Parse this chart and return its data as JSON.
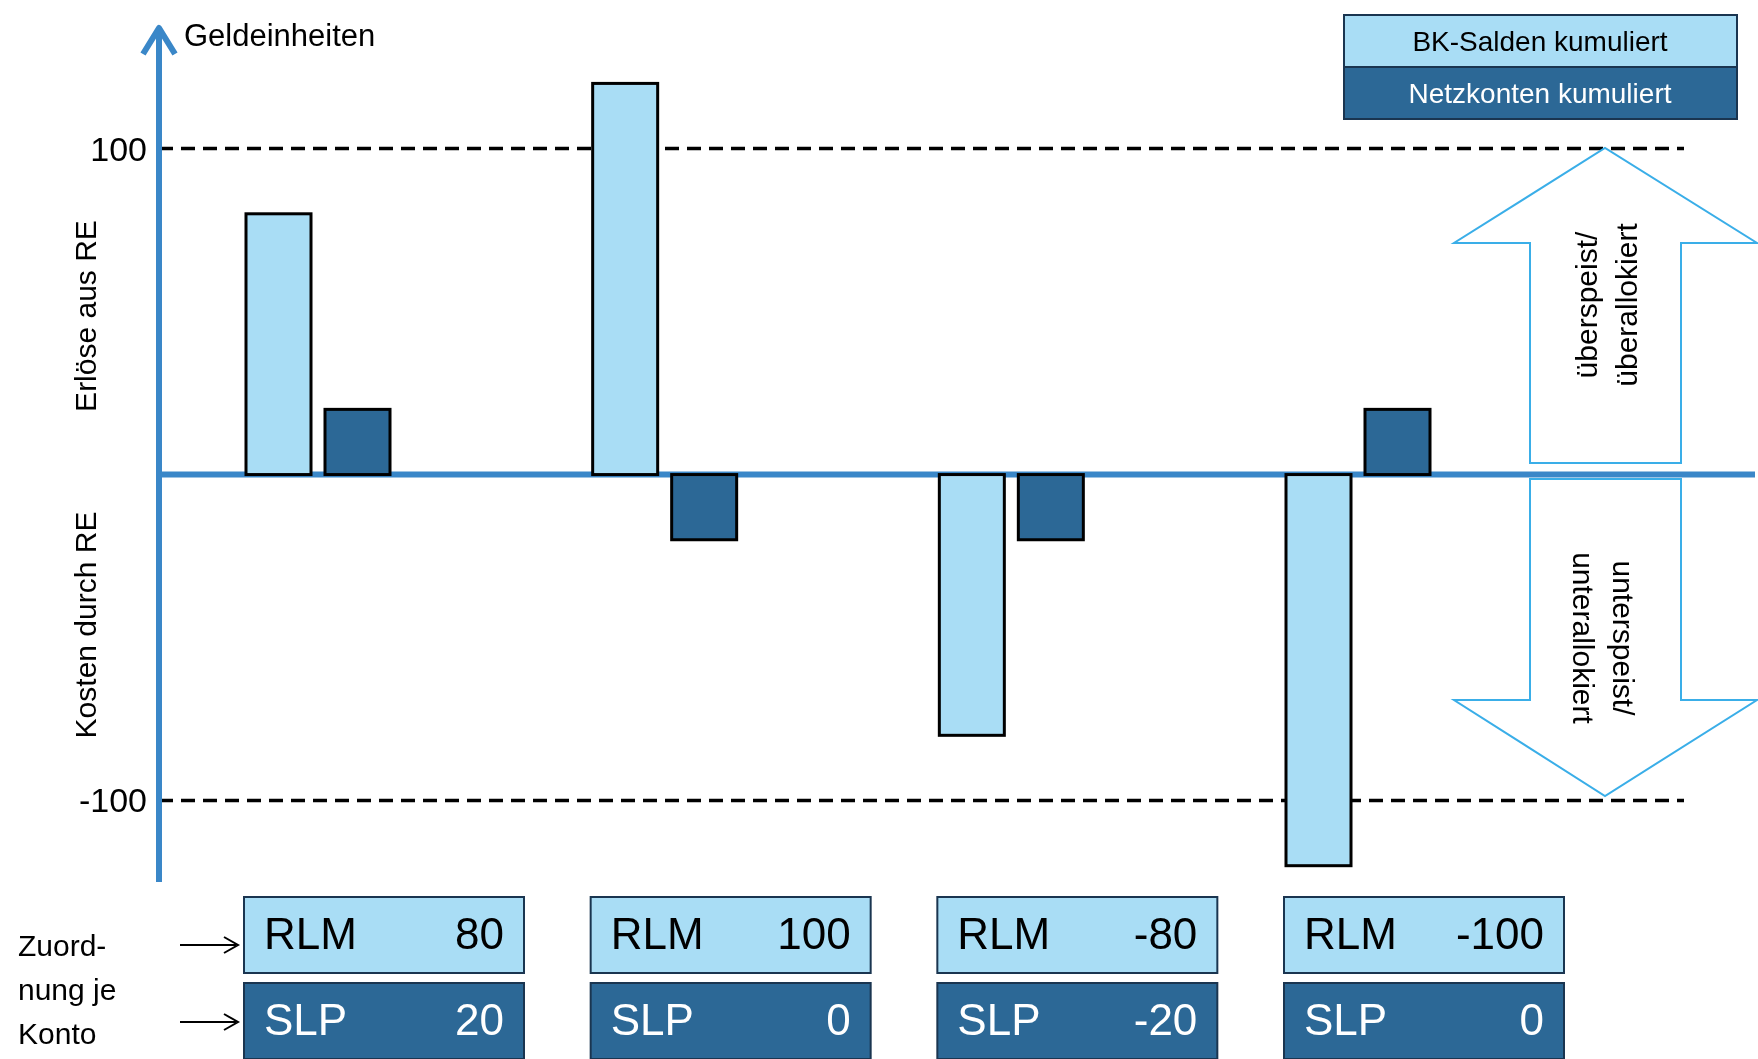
{
  "chart_data": {
    "type": "bar",
    "ylabel": "Geldeinheiten",
    "categories": [
      null,
      null,
      null,
      null
    ],
    "series": [
      {
        "name": "BK-Salden kumuliert",
        "color": "#a9ddf5",
        "values": [
          80,
          120,
          -80,
          -120
        ]
      },
      {
        "name": "Netzkonten kumuliert",
        "color": "#2c6896",
        "values": [
          20,
          -20,
          -20,
          20
        ]
      }
    ],
    "ylim": [
      -125,
      137
    ],
    "yticks": [
      100,
      -100
    ],
    "ref_lines": [
      {
        "axis": "y",
        "value": 0,
        "line_style": "solid",
        "color": "#3a87c8"
      },
      {
        "axis": "y",
        "value": 100,
        "line_style": "dashed",
        "color": "#000000"
      },
      {
        "axis": "y",
        "value": -100,
        "line_style": "dashed",
        "color": "#000000"
      }
    ],
    "legend": "top right",
    "annotations": [
      "Erlöse aus RE",
      "Kosten durch RE",
      "überspeist/\nüberallokiert",
      "unterspeist/\nunterallokiert",
      "Zuord-\nnung je\nKonto",
      "RLM 80",
      "RLM 100",
      "RLM -80",
      "RLM -100",
      "SLP 20",
      "SLP 0",
      "SLP -20",
      "SLP 0"
    ]
  }
}
